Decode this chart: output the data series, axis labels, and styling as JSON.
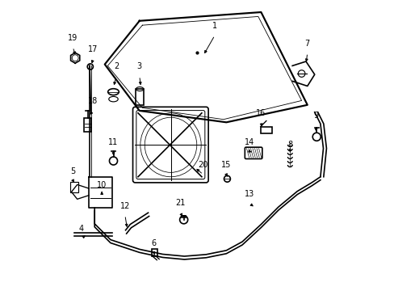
{
  "background_color": "#ffffff",
  "line_color": "#000000",
  "line_width": 1.2,
  "arrows": {
    "1": [
      0.56,
      0.12,
      0.52,
      0.19
    ],
    "2": [
      0.22,
      0.26,
      0.21,
      0.3
    ],
    "3": [
      0.3,
      0.26,
      0.305,
      0.3
    ],
    "4": [
      0.1,
      0.82,
      0.12,
      0.805
    ],
    "5": [
      0.07,
      0.62,
      0.078,
      0.635
    ],
    "6": [
      0.35,
      0.87,
      0.354,
      0.885
    ],
    "7": [
      0.88,
      0.18,
      0.875,
      0.22
    ],
    "8": [
      0.82,
      0.53,
      0.82,
      0.5
    ],
    "9": [
      0.91,
      0.43,
      0.91,
      0.46
    ],
    "10": [
      0.17,
      0.67,
      0.17,
      0.65
    ],
    "11": [
      0.21,
      0.52,
      0.21,
      0.535
    ],
    "12": [
      0.25,
      0.74,
      0.258,
      0.79
    ],
    "13": [
      0.68,
      0.7,
      0.7,
      0.715
    ],
    "14": [
      0.68,
      0.52,
      0.695,
      0.525
    ],
    "15": [
      0.6,
      0.6,
      0.607,
      0.615
    ],
    "16": [
      0.72,
      0.42,
      0.724,
      0.443
    ],
    "17": [
      0.14,
      0.2,
      0.133,
      0.225
    ],
    "18": [
      0.14,
      0.38,
      0.123,
      0.4
    ],
    "19": [
      0.07,
      0.16,
      0.08,
      0.195
    ],
    "20": [
      0.52,
      0.6,
      0.49,
      0.575
    ],
    "21": [
      0.44,
      0.73,
      0.453,
      0.752
    ]
  },
  "figsize": [
    4.89,
    3.6
  ],
  "dpi": 100
}
